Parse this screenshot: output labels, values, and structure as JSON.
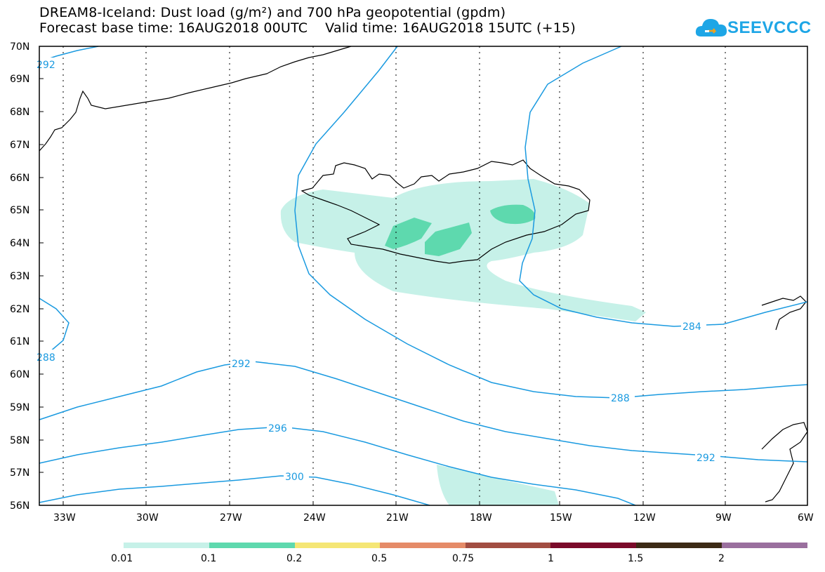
{
  "title": {
    "line1": "DREAM8-Iceland: Dust load (g/m²) and 700 hPa geopotential (gpdm)",
    "line2": "Forecast base time: 16AUG2018 00UTC    Valid time: 16AUG2018 15UTC (+15)"
  },
  "logo": {
    "text": "SEEVCCC",
    "icon": "cloud-logo-icon",
    "color": "#1ea6e6"
  },
  "map": {
    "lon_range": [
      -34.2,
      -6.0
    ],
    "lat_range": [
      56,
      70
    ],
    "lat_ticks": [
      "70N",
      "69N",
      "68N",
      "67N",
      "66N",
      "65N",
      "64N",
      "63N",
      "62N",
      "61N",
      "60N",
      "59N",
      "58N",
      "57N",
      "56N"
    ],
    "lon_ticks": [
      "33W",
      "30W",
      "27W",
      "24W",
      "21W",
      "18W",
      "15W",
      "12W",
      "9W",
      "6W"
    ],
    "contour_color": "#1a9ae0",
    "contour_labels": [
      "292",
      "288",
      "292",
      "296",
      "300",
      "284",
      "288",
      "292"
    ]
  },
  "legend": {
    "colors": [
      "#c6f1e8",
      "#5ed9ae",
      "#f5e675",
      "#e58b68",
      "#a24d42",
      "#7b0a2a",
      "#3c2a15",
      "#9a6f9e"
    ],
    "labels": [
      "0.01",
      "0.1",
      "0.2",
      "0.5",
      "0.75",
      "1",
      "1.5",
      "2"
    ]
  }
}
